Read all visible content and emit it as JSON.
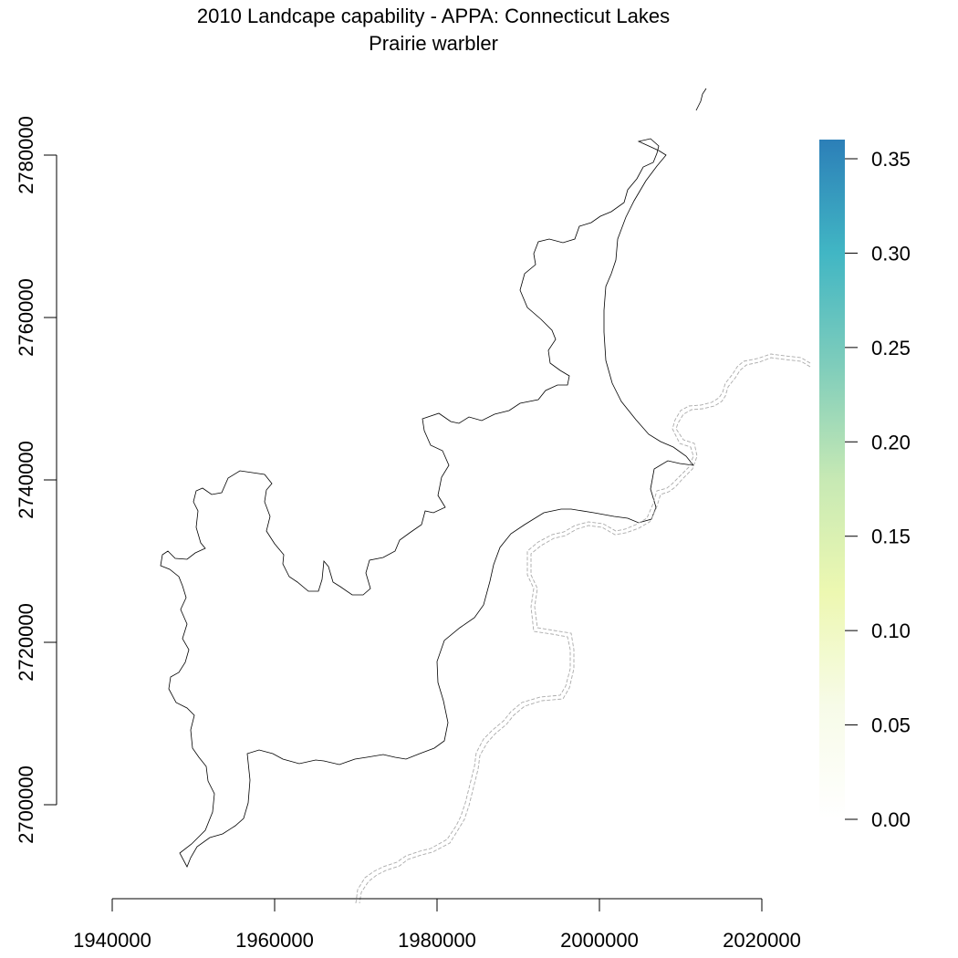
{
  "title": "2010 Landcape capability - APPA: Connecticut Lakes",
  "subtitle": "Prairie warbler",
  "map": {
    "x_ticks": [
      "1940000",
      "1960000",
      "1980000",
      "2000000",
      "2020000"
    ],
    "y_ticks": [
      "2700000",
      "2720000",
      "2740000",
      "2760000",
      "2780000"
    ]
  },
  "legend": {
    "ticks": [
      "0.00",
      "0.05",
      "0.10",
      "0.15",
      "0.20",
      "0.25",
      "0.30",
      "0.35"
    ],
    "colors": [
      "#ffffff",
      "#f7fbe8",
      "#edf8b1",
      "#c7e9b4",
      "#7fcdbb",
      "#41b6c4",
      "#2c7fb8"
    ]
  },
  "colors": {
    "boundary": "#000000",
    "dashed_border": "#aaaaaa"
  }
}
